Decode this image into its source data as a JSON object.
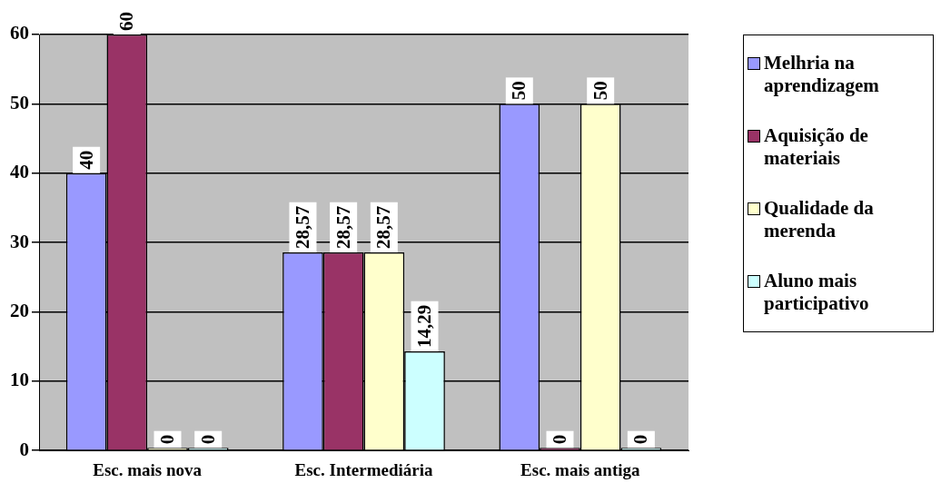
{
  "chart_data": {
    "type": "bar",
    "categories": [
      "Esc. mais nova",
      "Esc. Intermediária",
      "Esc. mais antiga"
    ],
    "series": [
      {
        "name": "Melhria na aprendizagem",
        "color": "#9999ff",
        "values": [
          40,
          28.57,
          50
        ],
        "value_labels": [
          "40",
          "28,57",
          "50"
        ]
      },
      {
        "name": "Aquisição de materiais",
        "color": "#993366",
        "values": [
          60,
          28.57,
          0
        ],
        "value_labels": [
          "60",
          "28,57",
          "0"
        ]
      },
      {
        "name": "Qualidade da merenda",
        "color": "#ffffcc",
        "values": [
          0,
          28.57,
          50
        ],
        "value_labels": [
          "0",
          "28,57",
          "50"
        ]
      },
      {
        "name": "Aluno mais participativo",
        "color": "#ccffff",
        "values": [
          0,
          14.29,
          0
        ],
        "value_labels": [
          "0",
          "14,29",
          "0"
        ]
      }
    ],
    "ylim": [
      0,
      60
    ],
    "yticks": [
      0,
      10,
      20,
      30,
      40,
      50,
      60
    ],
    "grid": "y",
    "legend": "right"
  }
}
